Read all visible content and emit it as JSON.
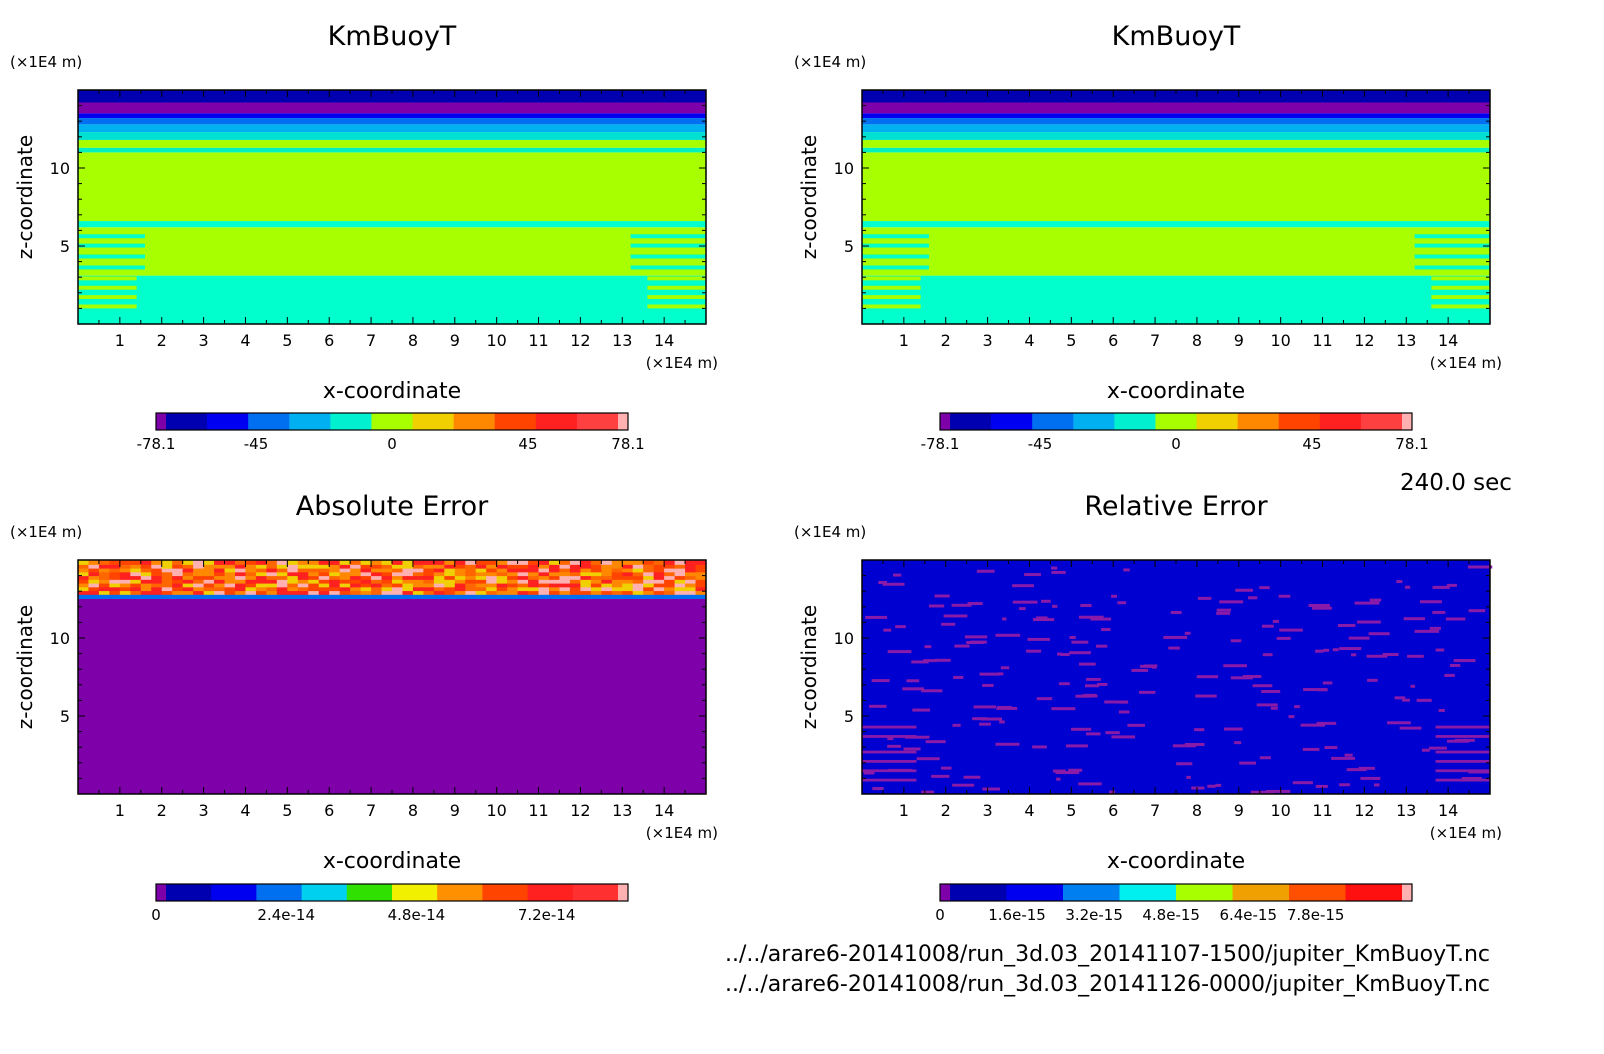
{
  "time_label": "240.0 sec",
  "file_paths": [
    "../../arare6-20141008/run_3d.03_20141107-1500/jupiter_KmBuoyT.nc",
    "../../arare6-20141008/run_3d.03_20141126-0000/jupiter_KmBuoyT.nc"
  ],
  "chart_data": [
    {
      "type": "heatmap",
      "title": "KmBuoyT",
      "xlabel": "x-coordinate",
      "ylabel": "z-coordinate",
      "x_unit": "(×1E4 m)",
      "y_unit": "(×1E4 m)",
      "xlim": [
        0,
        15
      ],
      "ylim": [
        0,
        15
      ],
      "x_ticks": [
        "1",
        "2",
        "3",
        "4",
        "5",
        "6",
        "7",
        "8",
        "9",
        "10",
        "11",
        "12",
        "13",
        "14"
      ],
      "y_ticks": [
        "5",
        "10"
      ],
      "field": "KmBuoyT",
      "colorbar": {
        "colors": [
          "#7e00a8",
          "#0000b0",
          "#0000f0",
          "#0070f0",
          "#00b0f0",
          "#00f0d0",
          "#a8ff00",
          "#f0d000",
          "#ff8800",
          "#ff4400",
          "#ff2020",
          "#ff4040",
          "#ffb0b0"
        ],
        "tick_labels": [
          "-78.1",
          "-45",
          "0",
          "45",
          "78.1"
        ],
        "min": -78.1,
        "max": 78.1
      }
    },
    {
      "type": "heatmap",
      "title": "KmBuoyT",
      "xlabel": "x-coordinate",
      "ylabel": "z-coordinate",
      "x_unit": "(×1E4 m)",
      "y_unit": "(×1E4 m)",
      "xlim": [
        0,
        15
      ],
      "ylim": [
        0,
        15
      ],
      "x_ticks": [
        "1",
        "2",
        "3",
        "4",
        "5",
        "6",
        "7",
        "8",
        "9",
        "10",
        "11",
        "12",
        "13",
        "14"
      ],
      "y_ticks": [
        "5",
        "10"
      ],
      "field": "KmBuoyT",
      "colorbar": {
        "colors": [
          "#7e00a8",
          "#0000b0",
          "#0000f0",
          "#0070f0",
          "#00b0f0",
          "#00f0d0",
          "#a8ff00",
          "#f0d000",
          "#ff8800",
          "#ff4400",
          "#ff2020",
          "#ff4040",
          "#ffb0b0"
        ],
        "tick_labels": [
          "-78.1",
          "-45",
          "0",
          "45",
          "78.1"
        ],
        "min": -78.1,
        "max": 78.1
      }
    },
    {
      "type": "heatmap",
      "title": "Absolute Error",
      "xlabel": "x-coordinate",
      "ylabel": "z-coordinate",
      "x_unit": "(×1E4 m)",
      "y_unit": "(×1E4 m)",
      "xlim": [
        0,
        15
      ],
      "ylim": [
        0,
        15
      ],
      "x_ticks": [
        "1",
        "2",
        "3",
        "4",
        "5",
        "6",
        "7",
        "8",
        "9",
        "10",
        "11",
        "12",
        "13",
        "14"
      ],
      "y_ticks": [
        "5",
        "10"
      ],
      "field": "abs",
      "colorbar": {
        "colors": [
          "#7e00a8",
          "#0000b0",
          "#0000f0",
          "#0070f0",
          "#00d0f0",
          "#30e000",
          "#f0f000",
          "#ff9000",
          "#ff4400",
          "#ff2020",
          "#ff3030",
          "#ffb0b0"
        ],
        "tick_labels": [
          "0",
          "2.4e-14",
          "4.8e-14",
          "7.2e-14"
        ],
        "min": 0,
        "max": 8.7e-14
      }
    },
    {
      "type": "heatmap",
      "title": "Relative Error",
      "xlabel": "x-coordinate",
      "ylabel": "z-coordinate",
      "x_unit": "(×1E4 m)",
      "y_unit": "(×1E4 m)",
      "xlim": [
        0,
        15
      ],
      "ylim": [
        0,
        15
      ],
      "x_ticks": [
        "1",
        "2",
        "3",
        "4",
        "5",
        "6",
        "7",
        "8",
        "9",
        "10",
        "11",
        "12",
        "13",
        "14"
      ],
      "y_ticks": [
        "5",
        "10"
      ],
      "field": "rel",
      "colorbar": {
        "colors": [
          "#7e00a8",
          "#0000b0",
          "#0000f0",
          "#0080f0",
          "#00f0f0",
          "#a8ff00",
          "#f0a000",
          "#ff5000",
          "#ff1010",
          "#ffb0b0"
        ],
        "tick_labels": [
          "0",
          "1.6e-15",
          "3.2e-15",
          "4.8e-15",
          "6.4e-15",
          "7.8e-15"
        ],
        "min": 0,
        "max": 9.8e-15
      }
    }
  ]
}
